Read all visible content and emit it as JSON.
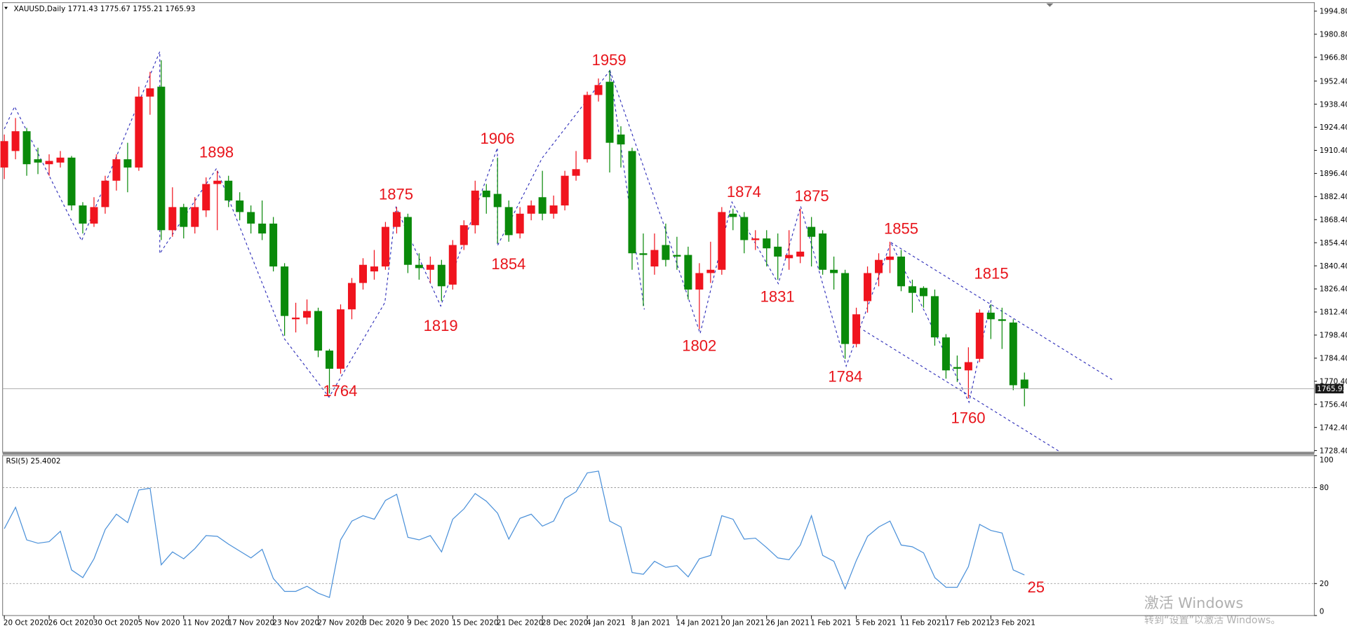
{
  "chart_data": [
    {
      "type": "candlestick",
      "title": "XAUUSD,Daily  1771.43 1775.67 1755.21 1765.93",
      "categories": [
        "20 Oct 2020",
        null,
        null,
        null,
        "26 Oct 2020",
        null,
        null,
        null,
        "30 Oct 2020",
        null,
        null,
        null,
        "5 Nov 2020",
        null,
        null,
        null,
        "11 Nov 2020",
        null,
        null,
        null,
        "17 Nov 2020",
        null,
        null,
        null,
        "23 Nov 2020",
        null,
        null,
        null,
        "27 Nov 2020",
        null,
        null,
        null,
        "3 Dec 2020",
        null,
        null,
        null,
        "9 Dec 2020",
        null,
        null,
        null,
        "15 Dec 2020",
        null,
        null,
        null,
        "21 Dec 2020",
        null,
        null,
        null,
        "28 Dec 2020",
        null,
        null,
        null,
        "4 Jan 2021",
        null,
        null,
        null,
        "8 Jan 2021",
        null,
        null,
        null,
        "14 Jan 2021",
        null,
        null,
        null,
        "20 Jan 2021",
        null,
        null,
        null,
        "26 Jan 2021",
        null,
        null,
        null,
        "1 Feb 2021",
        null,
        null,
        null,
        "5 Feb 2021",
        null,
        null,
        null,
        "11 Feb 2021",
        null,
        null,
        null,
        "17 Feb 2021",
        null,
        null,
        null,
        "23 Feb 2021",
        null,
        null,
        null
      ],
      "open": [
        1900,
        1910,
        1922,
        1905,
        1902,
        1903,
        1906,
        1877,
        1866,
        1876,
        1892,
        1905,
        1900,
        1943,
        1949,
        1862,
        1876,
        1864,
        1874,
        1890,
        1892,
        1880,
        1873,
        1866,
        1866,
        1840,
        1808,
        1809,
        1813,
        1789,
        1778,
        1814,
        1830,
        1837,
        1840,
        1864,
        1870,
        1841,
        1838,
        1841,
        1829,
        1853,
        1865,
        1886,
        1884,
        1876,
        1860,
        1872,
        1882,
        1872,
        1877,
        1895,
        1905,
        1944,
        1952,
        1920,
        1910,
        1848,
        1840,
        1853,
        1847,
        1847,
        1826,
        1836,
        1838,
        1872,
        1870,
        1856,
        1857,
        1852,
        1845,
        1846,
        1864,
        1860,
        1838,
        1836,
        1793,
        1819,
        1836,
        1844,
        1846,
        1828,
        1827,
        1822,
        1797,
        1779,
        1777,
        1784,
        1812,
        1808,
        1806,
        1771.43
      ],
      "high": [
        1920,
        1930,
        1924,
        1912,
        1908,
        1910,
        1907,
        1879,
        1882,
        1895,
        1908,
        1915,
        1949,
        1958,
        1965,
        1888,
        1878,
        1882,
        1894,
        1898,
        1895,
        1885,
        1877,
        1880,
        1870,
        1842,
        1818,
        1820,
        1815,
        1790,
        1817,
        1833,
        1845,
        1850,
        1867,
        1876,
        1872,
        1848,
        1846,
        1844,
        1856,
        1868,
        1892,
        1890,
        1906,
        1880,
        1876,
        1880,
        1898,
        1883,
        1898,
        1910,
        1946,
        1954,
        1959,
        1925,
        1912,
        1860,
        1860,
        1866,
        1858,
        1852,
        1842,
        1855,
        1876,
        1875,
        1873,
        1862,
        1862,
        1860,
        1862,
        1875,
        1870,
        1862,
        1846,
        1838,
        1815,
        1840,
        1848,
        1855,
        1850,
        1832,
        1828,
        1826,
        1799,
        1786,
        1791,
        1814,
        1817,
        1815,
        1808,
        1775.67
      ],
      "low": [
        1893,
        1905,
        1895,
        1896,
        1895,
        1900,
        1874,
        1860,
        1864,
        1872,
        1886,
        1885,
        1898,
        1932,
        1856,
        1858,
        1857,
        1860,
        1870,
        1862,
        1876,
        1868,
        1860,
        1856,
        1837,
        1798,
        1800,
        1805,
        1785,
        1763,
        1775,
        1808,
        1826,
        1832,
        1838,
        1860,
        1836,
        1832,
        1830,
        1819,
        1826,
        1850,
        1860,
        1872,
        1854,
        1855,
        1857,
        1868,
        1868,
        1869,
        1874,
        1892,
        1903,
        1940,
        1897,
        1900,
        1838,
        1816,
        1835,
        1840,
        1838,
        1820,
        1802,
        1830,
        1835,
        1862,
        1848,
        1850,
        1840,
        1832,
        1838,
        1842,
        1840,
        1835,
        1826,
        1784,
        1791,
        1812,
        1828,
        1836,
        1825,
        1812,
        1815,
        1792,
        1772,
        1770,
        1760,
        1782,
        1796,
        1790,
        1765,
        1755.21
      ],
      "close": [
        1916,
        1922,
        1902,
        1903,
        1904,
        1906,
        1877,
        1866,
        1876,
        1892,
        1905,
        1900,
        1943,
        1948,
        1862,
        1876,
        1864,
        1876,
        1890,
        1892,
        1880,
        1873,
        1866,
        1860,
        1840,
        1810,
        1809,
        1813,
        1789,
        1778,
        1814,
        1830,
        1841,
        1840,
        1864,
        1873,
        1841,
        1839,
        1841,
        1828,
        1853,
        1865,
        1886,
        1882,
        1876,
        1859,
        1872,
        1877,
        1872,
        1877,
        1895,
        1899,
        1944,
        1950,
        1915,
        1914,
        1848,
        1847,
        1850,
        1844,
        1846,
        1826,
        1836,
        1838,
        1873,
        1870,
        1856,
        1857,
        1851,
        1846,
        1847,
        1849,
        1858,
        1838,
        1836,
        1793,
        1811,
        1836,
        1844,
        1846,
        1828,
        1824,
        1822,
        1797,
        1777,
        1778,
        1782,
        1812,
        1808,
        1807,
        1768,
        1765.93
      ],
      "up_color": "#f0141e",
      "down_color": "#0a8a0a",
      "ylim": [
        1727.4,
        2000.0
      ],
      "yticks": [
        {
          "value": 1994.8,
          "label": "1994.80"
        },
        {
          "value": 1980.8,
          "label": "1980.80"
        },
        {
          "value": 1966.8,
          "label": "1966.80"
        },
        {
          "value": 1952.4,
          "label": "1952.40"
        },
        {
          "value": 1938.4,
          "label": "1938.40"
        },
        {
          "value": 1924.4,
          "label": "1924.40"
        },
        {
          "value": 1910.4,
          "label": "1910.40"
        },
        {
          "value": 1896.4,
          "label": "1896.40"
        },
        {
          "value": 1882.4,
          "label": "1882.40"
        },
        {
          "value": 1868.4,
          "label": "1868.40"
        },
        {
          "value": 1854.4,
          "label": "1854.40"
        },
        {
          "value": 1840.4,
          "label": "1840.40"
        },
        {
          "value": 1826.4,
          "label": "1826.40"
        },
        {
          "value": 1812.4,
          "label": "1812.40"
        },
        {
          "value": 1798.4,
          "label": "1798.40"
        },
        {
          "value": 1784.4,
          "label": "1784.40"
        },
        {
          "value": 1770.4,
          "label": "1770.40"
        },
        {
          "value": 1756.4,
          "label": "1756.40"
        },
        {
          "value": 1742.4,
          "label": "1742.40"
        },
        {
          "value": 1728.4,
          "label": "1728.40"
        }
      ],
      "price_line": 1765.93,
      "annotations": [
        "1898",
        "1875",
        "1764",
        "1906",
        "1854",
        "1819",
        "1959",
        "1802",
        "1874",
        "1875",
        "1831",
        "1784",
        "1855",
        "1815",
        "1760"
      ]
    },
    {
      "type": "line",
      "title": "RSI(5) 25.4002",
      "values": [
        54.3,
        67.7,
        47.3,
        45.2,
        46.2,
        52.7,
        28.5,
        23.7,
        35.5,
        53.8,
        63.4,
        58.1,
        78.5,
        79.6,
        31.7,
        39.8,
        35.5,
        41.9,
        50.0,
        49.5,
        44.6,
        40.3,
        36.0,
        41.4,
        23.1,
        15.1,
        15.1,
        18.3,
        14.0,
        11.3,
        47.3,
        59.1,
        62.4,
        60.2,
        72.0,
        75.8,
        48.9,
        47.3,
        50.0,
        39.8,
        60.2,
        66.7,
        76.3,
        71.5,
        64.0,
        47.8,
        60.8,
        63.4,
        55.9,
        59.1,
        73.1,
        77.4,
        89.2,
        90.3,
        59.1,
        55.4,
        26.9,
        25.8,
        33.9,
        30.1,
        31.2,
        24.2,
        35.5,
        37.6,
        62.4,
        60.2,
        47.8,
        48.4,
        42.5,
        36.0,
        34.9,
        44.1,
        62.4,
        37.6,
        33.9,
        16.7,
        34.4,
        49.5,
        55.4,
        59.1,
        44.1,
        43.0,
        39.2,
        23.7,
        17.7,
        17.7,
        30.6,
        57.0,
        53.2,
        51.6,
        28.5,
        25.4002
      ],
      "color": "#4a90d9",
      "ylim": [
        0,
        100
      ],
      "yticks": [
        100,
        80,
        20,
        0
      ],
      "levels": [
        80,
        20
      ],
      "annotation": "25"
    }
  ],
  "watermark": {
    "title": "激活 Windows",
    "subtitle": "转到“设置”以激活 Windows。"
  }
}
